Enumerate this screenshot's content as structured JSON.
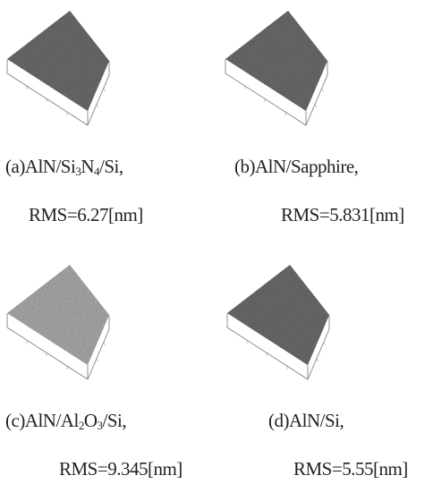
{
  "panels": [
    {
      "caption_parts": [
        "(a)AlN/Si",
        "3",
        "N",
        "4",
        "/Si,"
      ],
      "rms": "RMS=6.27[nm]"
    },
    {
      "caption_parts": [
        "(b)AlN/Sapphire,"
      ],
      "rms": "RMS=5.831[nm]"
    },
    {
      "caption_parts": [
        "(c)AlN/Al",
        "2",
        "O",
        "3",
        "/Si,"
      ],
      "rms": "RMS=9.345[nm]"
    },
    {
      "caption_parts": [
        "(d)AlN/Si,"
      ],
      "rms": "RMS=5.55[nm]"
    }
  ]
}
